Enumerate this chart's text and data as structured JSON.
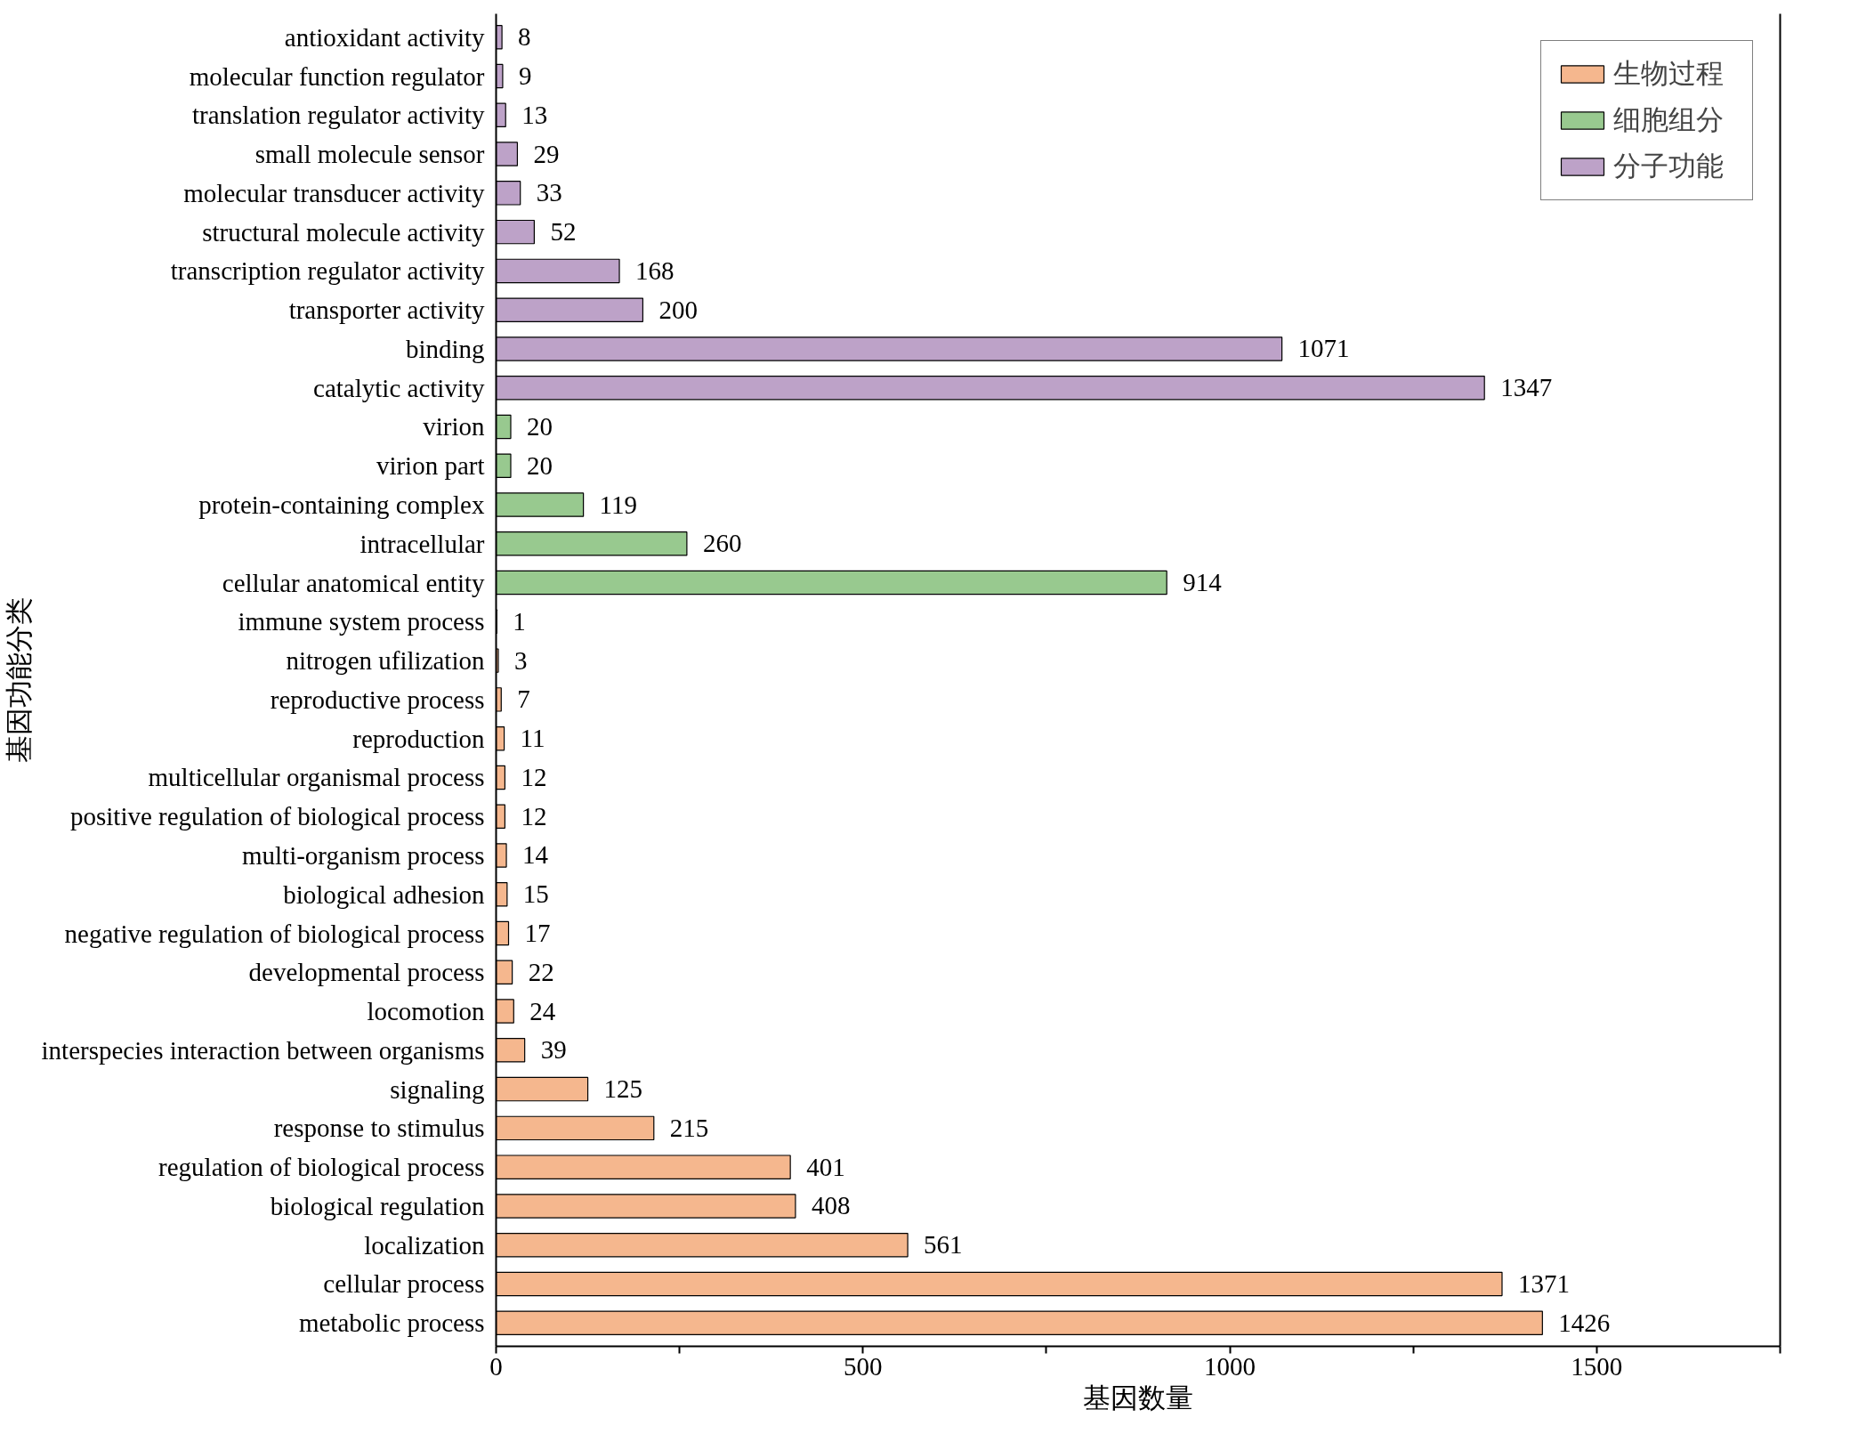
{
  "chart_data": {
    "type": "bar",
    "orientation": "horizontal",
    "xlabel": "基因数量",
    "ylabel": "基因功能分类",
    "categories": [
      "antioxidant activity",
      "molecular function regulator",
      "translation regulator activity",
      "small molecule sensor",
      "molecular transducer activity",
      "structural molecule activity",
      "transcription regulator activity",
      "transporter activity",
      "binding",
      "catalytic activity",
      "virion",
      "virion part",
      "protein-containing complex",
      "intracellular",
      "cellular anatomical entity",
      "immune system process",
      "nitrogen ufilization",
      "reproductive process",
      "reproduction",
      "multicellular organismal process",
      "positive regulation of biological process",
      "multi-organism process",
      "biological adhesion",
      "negative regulation of biological process",
      "developmental process",
      "locomotion",
      "interspecies interaction between organisms",
      "signaling",
      "response to stimulus",
      "regulation of biological process",
      "biological regulation",
      "localization",
      "cellular process",
      "metabolic process"
    ],
    "series": [
      {
        "name": "生物过程",
        "color": "#f5b78e",
        "values": [
          null,
          null,
          null,
          null,
          null,
          null,
          null,
          null,
          null,
          null,
          null,
          null,
          null,
          null,
          null,
          1,
          3,
          7,
          11,
          12,
          12,
          14,
          15,
          17,
          22,
          24,
          39,
          125,
          215,
          401,
          408,
          561,
          1371,
          1426
        ]
      },
      {
        "name": "细胞组分",
        "color": "#98c98f",
        "values": [
          null,
          null,
          null,
          null,
          null,
          null,
          null,
          null,
          null,
          null,
          20,
          20,
          119,
          260,
          914,
          null,
          null,
          null,
          null,
          null,
          null,
          null,
          null,
          null,
          null,
          null,
          null,
          null,
          null,
          null,
          null,
          null,
          null,
          null
        ]
      },
      {
        "name": "分子功能",
        "color": "#bda2c8",
        "values": [
          8,
          9,
          13,
          29,
          33,
          52,
          168,
          200,
          1071,
          1347,
          null,
          null,
          null,
          null,
          null,
          null,
          null,
          null,
          null,
          null,
          null,
          null,
          null,
          null,
          null,
          null,
          null,
          null,
          null,
          null,
          null,
          null,
          null,
          null
        ]
      }
    ],
    "xlim": [
      0,
      1750
    ],
    "xticks": [
      0,
      {
        "value": 250,
        "label": null
      },
      500,
      {
        "value": 750,
        "label": null
      },
      1000,
      {
        "value": 1250,
        "label": null
      },
      1500,
      {
        "value": 1750,
        "label": null
      }
    ],
    "data_labels": true,
    "legend": "top right",
    "grid": false
  }
}
